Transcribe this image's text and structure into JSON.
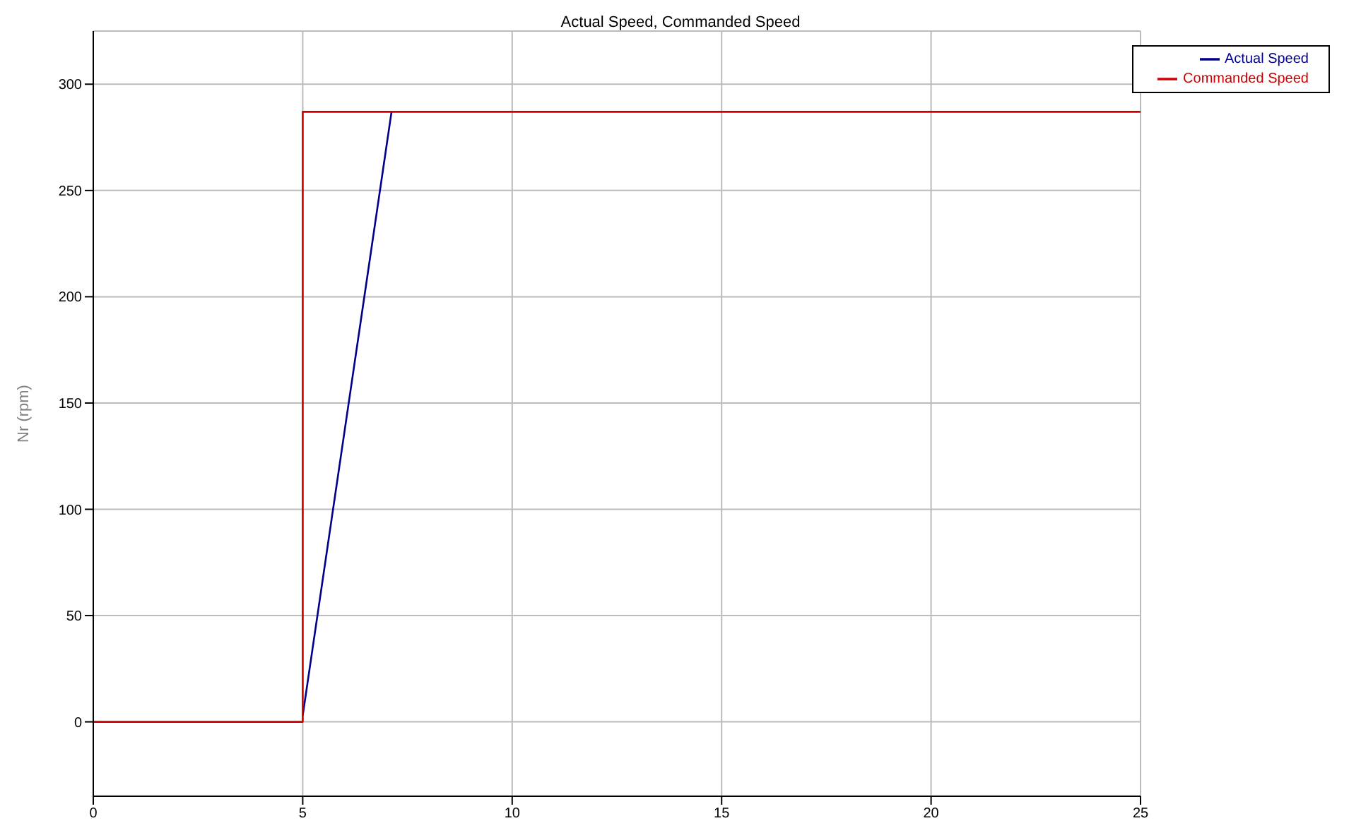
{
  "chart_data": {
    "type": "line",
    "title": "Actual Speed, Commanded Speed",
    "ylabel": "Nr (rpm)",
    "series": [
      {
        "name": "Actual Speed",
        "color": "#00008b",
        "x": [
          5,
          7.12
        ],
        "values": [
          3,
          287
        ]
      },
      {
        "name": "Commanded Speed",
        "type": "step",
        "color": "#cc0000",
        "x": [
          0,
          5,
          25
        ],
        "values": [
          0,
          287,
          287
        ]
      }
    ],
    "xlim": [
      0,
      25
    ],
    "xticks": [
      0,
      5,
      10,
      15,
      20,
      25
    ],
    "ylim": [
      -35,
      325
    ],
    "yticks": [
      0,
      50,
      100,
      150,
      200,
      250,
      300
    ],
    "grid": true,
    "legend": "top right",
    "marker": "none",
    "line_style": "solid"
  }
}
